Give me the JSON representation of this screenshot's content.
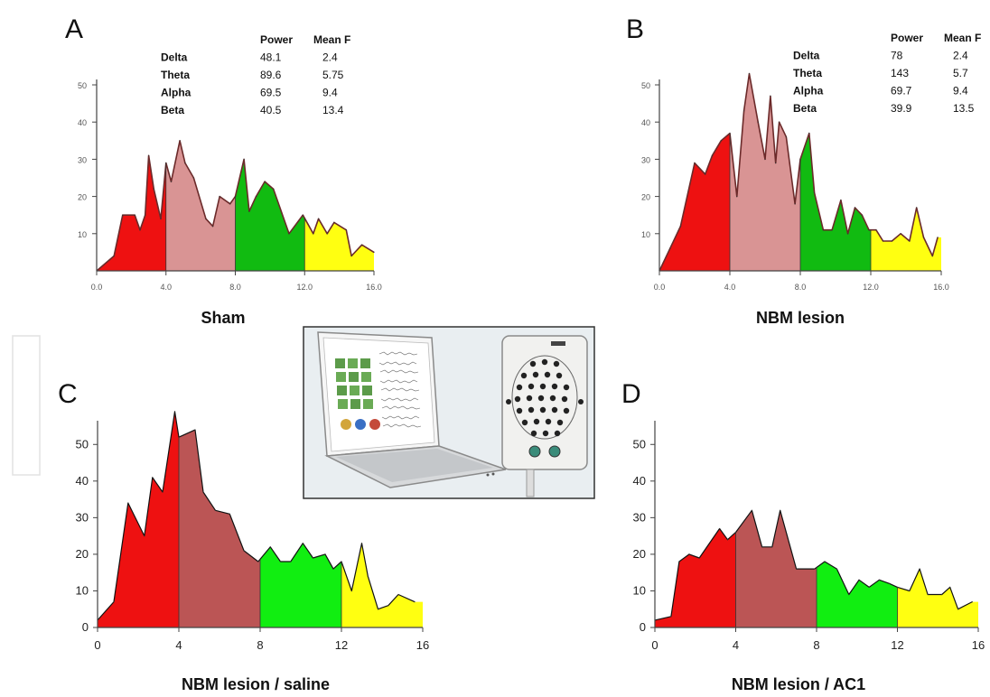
{
  "chart_data": [
    {
      "panel": "A",
      "type": "area",
      "caption": "Sham",
      "title": "",
      "xlabel": "",
      "ylabel": "",
      "xlim": [
        0,
        16
      ],
      "ylim": [
        0,
        50
      ],
      "xticks": [
        "0.0",
        "4.0",
        "8.0",
        "12.0",
        "16.0"
      ],
      "yticks": [
        "10",
        "20",
        "30",
        "40",
        "50"
      ],
      "bands": [
        {
          "name": "Delta",
          "from": 0,
          "to": 4,
          "color": "#ee1111"
        },
        {
          "name": "Theta",
          "from": 4,
          "to": 8,
          "color": "#d99494"
        },
        {
          "name": "Alpha",
          "from": 8,
          "to": 12,
          "color": "#11bb11"
        },
        {
          "name": "Beta",
          "from": 12,
          "to": 16,
          "color": "#ffff11"
        }
      ],
      "x": [
        0,
        1,
        1.5,
        2.2,
        2.5,
        2.8,
        3.0,
        3.3,
        3.7,
        4.0,
        4.3,
        4.8,
        5.1,
        5.6,
        6.3,
        6.7,
        7.1,
        7.7,
        8.0,
        8.5,
        8.8,
        9.2,
        9.7,
        10.2,
        11.1,
        11.9,
        12.5,
        12.8,
        13.3,
        13.7,
        14.4,
        14.7,
        15.3,
        16.0
      ],
      "values": [
        0,
        4,
        15,
        15,
        11,
        15,
        31,
        22,
        14,
        29,
        24,
        35,
        29,
        25,
        14,
        12,
        20,
        18,
        20,
        30,
        16,
        20,
        24,
        22,
        10,
        15,
        10,
        14,
        10,
        13,
        11,
        4,
        7,
        5
      ],
      "stats_headers": [
        "Power",
        "Mean F"
      ],
      "stats": [
        {
          "band": "Delta",
          "power": "48.1",
          "mean_f": "2.4"
        },
        {
          "band": "Theta",
          "power": "89.6",
          "mean_f": "5.75"
        },
        {
          "band": "Alpha",
          "power": "69.5",
          "mean_f": "9.4"
        },
        {
          "band": "Beta",
          "power": "40.5",
          "mean_f": "13.4"
        }
      ]
    },
    {
      "panel": "B",
      "type": "area",
      "caption": "NBM lesion",
      "title": "",
      "xlabel": "",
      "ylabel": "",
      "xlim": [
        0,
        16
      ],
      "ylim": [
        0,
        50
      ],
      "xticks": [
        "0.0",
        "4.0",
        "8.0",
        "12.0",
        "16.0"
      ],
      "yticks": [
        "10",
        "20",
        "30",
        "40",
        "50"
      ],
      "bands": [
        {
          "name": "Delta",
          "from": 0,
          "to": 4,
          "color": "#ee1111"
        },
        {
          "name": "Theta",
          "from": 4,
          "to": 8,
          "color": "#d99494"
        },
        {
          "name": "Alpha",
          "from": 8,
          "to": 12,
          "color": "#11bb11"
        },
        {
          "name": "Beta",
          "from": 12,
          "to": 16,
          "color": "#ffff11"
        }
      ],
      "x": [
        0,
        0.6,
        1.2,
        2.0,
        2.6,
        3.0,
        3.5,
        4.0,
        4.4,
        4.8,
        5.1,
        5.6,
        6.0,
        6.3,
        6.6,
        6.8,
        7.2,
        7.7,
        8.0,
        8.5,
        8.8,
        9.3,
        9.8,
        10.3,
        10.7,
        11.1,
        11.5,
        11.9,
        12.3,
        12.7,
        13.2,
        13.7,
        14.2,
        14.6,
        15.0,
        15.5,
        15.8
      ],
      "values": [
        0,
        6,
        12,
        29,
        26,
        31,
        35,
        37,
        20,
        43,
        53,
        40,
        30,
        47,
        29,
        40,
        36,
        18,
        30,
        37,
        21,
        11,
        11,
        19,
        10,
        17,
        15,
        11,
        11,
        8,
        8,
        10,
        8,
        17,
        9,
        4,
        9
      ],
      "stats_headers": [
        "Power",
        "Mean F"
      ],
      "stats": [
        {
          "band": "Delta",
          "power": "78",
          "mean_f": "2.4"
        },
        {
          "band": "Theta",
          "power": "143",
          "mean_f": "5.7"
        },
        {
          "band": "Alpha",
          "power": "69.7",
          "mean_f": "9.4"
        },
        {
          "band": "Beta",
          "power": "39.9",
          "mean_f": "13.5"
        }
      ]
    },
    {
      "panel": "C",
      "type": "area",
      "caption": "NBM lesion / saline",
      "title": "",
      "xlabel": "",
      "ylabel": "",
      "xlim": [
        0,
        16
      ],
      "ylim": [
        0,
        55
      ],
      "xticks": [
        "0",
        "4",
        "8",
        "12",
        "16"
      ],
      "yticks": [
        "0",
        "10",
        "20",
        "30",
        "40",
        "50"
      ],
      "bands": [
        {
          "name": "Delta",
          "from": 0,
          "to": 4,
          "color": "#ee1111"
        },
        {
          "name": "Theta",
          "from": 4,
          "to": 8,
          "color": "#bb5555"
        },
        {
          "name": "Alpha",
          "from": 8,
          "to": 12,
          "color": "#11ee11"
        },
        {
          "name": "Beta",
          "from": 12,
          "to": 16,
          "color": "#ffff11"
        }
      ],
      "x": [
        0,
        0.8,
        1.5,
        2.3,
        2.7,
        3.2,
        3.8,
        4.0,
        4.8,
        5.2,
        5.8,
        6.5,
        7.2,
        7.9,
        8.5,
        9.0,
        9.5,
        10.1,
        10.6,
        11.2,
        11.6,
        12.0,
        12.5,
        13.0,
        13.3,
        13.8,
        14.3,
        14.8,
        15.6
      ],
      "values": [
        2,
        7,
        34,
        25,
        41,
        37,
        59,
        52,
        54,
        37,
        32,
        31,
        21,
        18,
        22,
        18,
        18,
        23,
        19,
        20,
        16,
        18,
        10,
        23,
        14,
        5,
        6,
        9,
        7
      ],
      "stats_headers": [],
      "stats": []
    },
    {
      "panel": "D",
      "type": "area",
      "caption": "NBM lesion / AC1",
      "title": "",
      "xlabel": "",
      "ylabel": "",
      "xlim": [
        0,
        16
      ],
      "ylim": [
        0,
        55
      ],
      "xticks": [
        "0",
        "4",
        "8",
        "12",
        "16"
      ],
      "yticks": [
        "0",
        "10",
        "20",
        "30",
        "40",
        "50"
      ],
      "bands": [
        {
          "name": "Delta",
          "from": 0,
          "to": 4,
          "color": "#ee1111"
        },
        {
          "name": "Theta",
          "from": 4,
          "to": 8,
          "color": "#bb5555"
        },
        {
          "name": "Alpha",
          "from": 8,
          "to": 12,
          "color": "#11ee11"
        },
        {
          "name": "Beta",
          "from": 12,
          "to": 16,
          "color": "#ffff11"
        }
      ],
      "x": [
        0,
        0.8,
        1.2,
        1.7,
        2.2,
        3.2,
        3.6,
        4.0,
        4.8,
        5.3,
        5.8,
        6.2,
        7.0,
        7.9,
        8.4,
        9.0,
        9.6,
        10.1,
        10.6,
        11.1,
        11.6,
        12.0,
        12.6,
        13.1,
        13.5,
        14.2,
        14.6,
        15.0,
        15.7
      ],
      "values": [
        2,
        3,
        18,
        20,
        19,
        27,
        24,
        26,
        32,
        22,
        22,
        32,
        16,
        16,
        18,
        16,
        9,
        13,
        11,
        13,
        12,
        11,
        10,
        16,
        9,
        9,
        11,
        5,
        7
      ],
      "stats_headers": [],
      "stats": []
    }
  ],
  "photo": {
    "icon": "eeg-laptop-amplifier-photo"
  }
}
